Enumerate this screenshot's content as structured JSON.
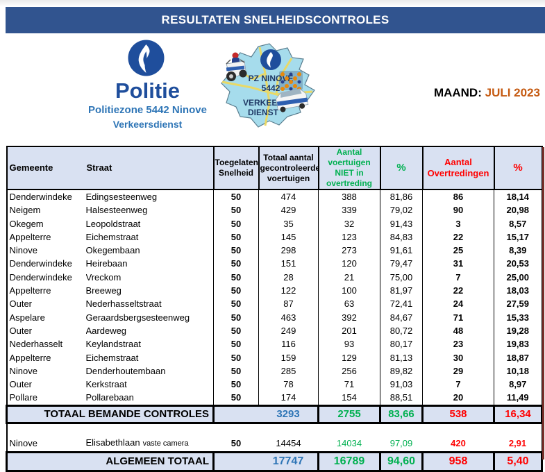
{
  "banner": {
    "title": "RESULTATEN SNELHEIDSCONTROLES"
  },
  "branding": {
    "name": "Politie",
    "zone": "Politiezone 5442 Ninove",
    "dept": "Verkeersdienst",
    "badge_lines": [
      "PZ NINOVE",
      "5442",
      "VERKEERS",
      "DIENST"
    ]
  },
  "period": {
    "label": "MAAND:",
    "value": "JULI 2023"
  },
  "table": {
    "headers": {
      "gemeente": "Gemeente",
      "straat": "Straat",
      "speed": "Toegelaten Snelheid",
      "checked": "Totaal aantal gecontroleerde voertuigen",
      "not_violation": "Aantal voertuigen NIET in overtreding",
      "pct_ok": "%",
      "violations": "Aantal Overtredingen",
      "pct_viol": "%"
    },
    "rows": [
      [
        "Denderwindeke",
        "Edingsesteenweg",
        "50",
        "474",
        "388",
        "81,86",
        "86",
        "18,14"
      ],
      [
        "Neigem",
        "Halsesteenweg",
        "50",
        "429",
        "339",
        "79,02",
        "90",
        "20,98"
      ],
      [
        "Okegem",
        "Leopoldstraat",
        "50",
        "35",
        "32",
        "91,43",
        "3",
        "8,57"
      ],
      [
        "Appelterre",
        "Eichemstraat",
        "50",
        "145",
        "123",
        "84,83",
        "22",
        "15,17"
      ],
      [
        "Ninove",
        "Okegembaan",
        "50",
        "298",
        "273",
        "91,61",
        "25",
        "8,39"
      ],
      [
        "Denderwindeke",
        "Heirebaan",
        "50",
        "151",
        "120",
        "79,47",
        "31",
        "20,53"
      ],
      [
        "Denderwindeke",
        "Vreckom",
        "50",
        "28",
        "21",
        "75,00",
        "7",
        "25,00"
      ],
      [
        "Appelterre",
        "Breeweg",
        "50",
        "122",
        "100",
        "81,97",
        "22",
        "18,03"
      ],
      [
        "Outer",
        "Nederhasseltstraat",
        "50",
        "87",
        "63",
        "72,41",
        "24",
        "27,59"
      ],
      [
        "Aspelare",
        "Geraardsbergsesteenweg",
        "50",
        "463",
        "392",
        "84,67",
        "71",
        "15,33"
      ],
      [
        "Outer",
        "Aardeweg",
        "50",
        "249",
        "201",
        "80,72",
        "48",
        "19,28"
      ],
      [
        "Nederhasselt",
        "Keylandstraat",
        "50",
        "116",
        "93",
        "80,17",
        "23",
        "19,83"
      ],
      [
        "Appelterre",
        "Eichemstraat",
        "50",
        "159",
        "129",
        "81,13",
        "30",
        "18,87"
      ],
      [
        "Ninove",
        "Denderhoutembaan",
        "50",
        "285",
        "256",
        "89,82",
        "29",
        "10,18"
      ],
      [
        "Outer",
        "Kerkstraat",
        "50",
        "78",
        "71",
        "91,03",
        "7",
        "8,97"
      ],
      [
        "Pollare",
        "Pollarebaan",
        "50",
        "174",
        "154",
        "88,51",
        "20",
        "11,49"
      ]
    ],
    "manned_total": {
      "label": "TOTAAL BEMANDE CONTROLES",
      "checked": "3293",
      "not_violation": "2755",
      "pct_ok": "83,66",
      "violations": "538",
      "pct_viol": "16,34"
    },
    "camera_row": {
      "gemeente": "Ninove",
      "straat": "Elisabethlaan",
      "straat_note": "vaste camera",
      "speed": "50",
      "checked": "14454",
      "not_violation": "14034",
      "pct_ok": "97,09",
      "violations": "420",
      "pct_viol": "2,91"
    },
    "grand_total": {
      "label": "ALGEMEEN TOTAAL",
      "checked": "17747",
      "not_violation": "16789",
      "pct_ok": "94,60",
      "violations": "958",
      "pct_viol": "5,40"
    }
  },
  "colors": {
    "banner_blue": "#31548F",
    "header_fill": "#D9E1F2",
    "green": "#00B050",
    "red": "#FF0000",
    "total_blue": "#2E75B6",
    "month_orange": "#C55A11",
    "politie_blue": "#1F4E9C",
    "zone_blue": "#2E75B6",
    "map_fill": "#A6DCEC",
    "badge_text": "#1F3864",
    "road_yellow": "#EDD95F",
    "edge_maroon": "#772F2A"
  }
}
